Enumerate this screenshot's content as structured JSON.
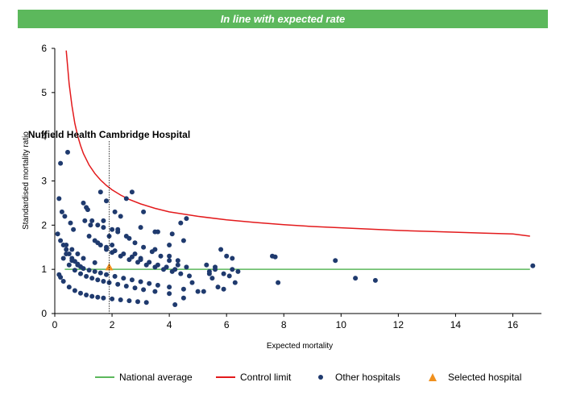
{
  "banner": {
    "text": "In line with expected rate"
  },
  "colors": {
    "banner": "#5cb85c",
    "national_average": "#5cb85c",
    "control_limit": "#e31a1c",
    "other_hospitals": "#1f3a6e",
    "selected_hospital": "#f0901e"
  },
  "chart_data": {
    "type": "scatter",
    "title": "",
    "xlabel": "Expected mortality",
    "ylabel": "Standardised mortality ratio",
    "xlim": [
      0,
      17
    ],
    "ylim": [
      0,
      6
    ],
    "x_ticks": [
      "0",
      "2",
      "4",
      "6",
      "8",
      "10",
      "12",
      "14",
      "16"
    ],
    "y_ticks": [
      "0",
      "1",
      "2",
      "3",
      "4",
      "5",
      "6"
    ],
    "grid": false,
    "legend_position": "bottom-right",
    "annotation": {
      "text": "Nuffield Health Cambridge Hospital",
      "x": 1.9,
      "y_top": 3.9
    },
    "national_average": {
      "name": "National average",
      "x": [
        0.35,
        16.6
      ],
      "y": [
        1,
        1
      ]
    },
    "control_limit": {
      "name": "Control limit",
      "x": [
        0.4,
        0.5,
        0.6,
        0.7,
        0.8,
        0.9,
        1.0,
        1.2,
        1.4,
        1.6,
        1.8,
        2.0,
        2.3,
        2.6,
        3.0,
        3.5,
        4.0,
        5.0,
        6.0,
        7.0,
        8.0,
        9.0,
        10.0,
        11.0,
        12.0,
        13.0,
        14.0,
        15.0,
        16.0,
        16.6
      ],
      "y": [
        5.95,
        5.2,
        4.7,
        4.3,
        4.02,
        3.8,
        3.62,
        3.36,
        3.17,
        3.02,
        2.9,
        2.8,
        2.68,
        2.58,
        2.48,
        2.38,
        2.3,
        2.2,
        2.12,
        2.06,
        2.01,
        1.97,
        1.94,
        1.91,
        1.88,
        1.86,
        1.84,
        1.82,
        1.8,
        1.75
      ]
    },
    "series": [
      {
        "name": "Other hospitals",
        "x": [
          0.15,
          0.2,
          0.3,
          0.5,
          0.7,
          0.9,
          1.1,
          1.3,
          1.5,
          1.7,
          2.0,
          2.3,
          2.6,
          2.9,
          3.2,
          0.3,
          0.5,
          0.7,
          0.9,
          1.1,
          1.3,
          1.5,
          1.7,
          1.9,
          2.2,
          2.5,
          2.8,
          3.1,
          3.5,
          4.0,
          0.4,
          0.6,
          0.8,
          1.0,
          1.2,
          1.4,
          1.6,
          1.8,
          2.1,
          2.4,
          2.7,
          3.0,
          3.3,
          3.6,
          4.0,
          4.5,
          5.0,
          1.4,
          1.6,
          1.8,
          2.0,
          2.3,
          2.6,
          2.9,
          3.2,
          3.5,
          3.8,
          4.1,
          4.4,
          4.7,
          1.2,
          1.5,
          1.8,
          2.1,
          2.4,
          2.7,
          3.0,
          3.3,
          3.6,
          3.9,
          4.2,
          0.1,
          0.2,
          0.3,
          0.4,
          0.5,
          0.6,
          0.7,
          0.8,
          0.9,
          1.0,
          1.1,
          1.3,
          1.5,
          1.7,
          1.9,
          2.0,
          2.2,
          2.5,
          2.8,
          3.1,
          3.5,
          4.0,
          4.3,
          0.15,
          0.25,
          0.35,
          0.55,
          0.65,
          1.05,
          1.25,
          1.6,
          1.8,
          2.1,
          2.3,
          2.5,
          2.7,
          3.0,
          3.5,
          4.0,
          4.5,
          0.4,
          0.6,
          0.8,
          1.0,
          1.4,
          2.0,
          2.2,
          2.6,
          2.8,
          3.0,
          3.4,
          3.7,
          4.0,
          4.3,
          4.6,
          0.2,
          0.45,
          1.15,
          1.7,
          3.1,
          3.6,
          4.1,
          4.4,
          4.6,
          4.2,
          4.5,
          4.8,
          5.2,
          5.4,
          5.6,
          5.8,
          6.0,
          6.2,
          6.4,
          5.3,
          5.5,
          5.7,
          5.9,
          6.1,
          6.3,
          5.4,
          5.6,
          5.9,
          6.2,
          7.6,
          7.7,
          7.8,
          9.8,
          10.5,
          11.2,
          16.7
        ],
        "y": [
          0.88,
          0.82,
          0.73,
          0.6,
          0.52,
          0.46,
          0.42,
          0.39,
          0.37,
          0.35,
          0.33,
          0.31,
          0.29,
          0.27,
          0.25,
          1.25,
          1.1,
          0.98,
          0.9,
          0.84,
          0.8,
          0.76,
          0.73,
          0.7,
          0.66,
          0.62,
          0.58,
          0.54,
          0.5,
          0.45,
          1.35,
          1.2,
          1.1,
          1.02,
          0.98,
          0.95,
          0.92,
          0.88,
          0.84,
          0.8,
          0.76,
          0.72,
          0.68,
          0.64,
          0.6,
          0.55,
          0.5,
          1.65,
          1.55,
          1.45,
          1.38,
          1.3,
          1.22,
          1.16,
          1.1,
          1.05,
          1.0,
          0.95,
          0.9,
          0.85,
          1.75,
          1.6,
          1.5,
          1.42,
          1.35,
          1.28,
          1.22,
          1.16,
          1.1,
          1.05,
          1.0,
          1.8,
          1.65,
          1.55,
          1.45,
          1.35,
          1.25,
          1.18,
          1.12,
          1.06,
          2.5,
          2.4,
          2.1,
          2.0,
          1.95,
          1.75,
          1.9,
          1.9,
          1.75,
          1.6,
          1.5,
          1.45,
          1.3,
          1.2,
          2.6,
          2.3,
          2.2,
          2.05,
          1.9,
          2.1,
          2.0,
          2.75,
          2.55,
          2.3,
          2.2,
          2.6,
          2.75,
          1.95,
          1.85,
          1.55,
          1.65,
          1.55,
          1.45,
          1.35,
          1.25,
          1.15,
          1.55,
          1.85,
          1.7,
          1.35,
          1.25,
          1.4,
          1.3,
          1.2,
          1.1,
          1.05,
          3.4,
          3.65,
          2.35,
          2.1,
          2.3,
          1.85,
          1.8,
          2.05,
          2.15,
          0.2,
          0.35,
          0.7,
          0.5,
          0.9,
          1.05,
          1.45,
          1.3,
          1.25,
          0.95,
          1.1,
          0.8,
          0.6,
          0.55,
          0.85,
          0.7,
          0.95,
          1.0,
          0.9,
          1.0,
          1.3,
          1.28,
          0.7,
          1.2,
          0.8,
          0.75,
          1.08
        ]
      },
      {
        "name": "Selected hospital",
        "x": [
          1.9
        ],
        "y": [
          1.05
        ]
      }
    ],
    "legend": [
      "National average",
      "Control limit",
      "Other hospitals",
      "Selected hospital"
    ]
  }
}
